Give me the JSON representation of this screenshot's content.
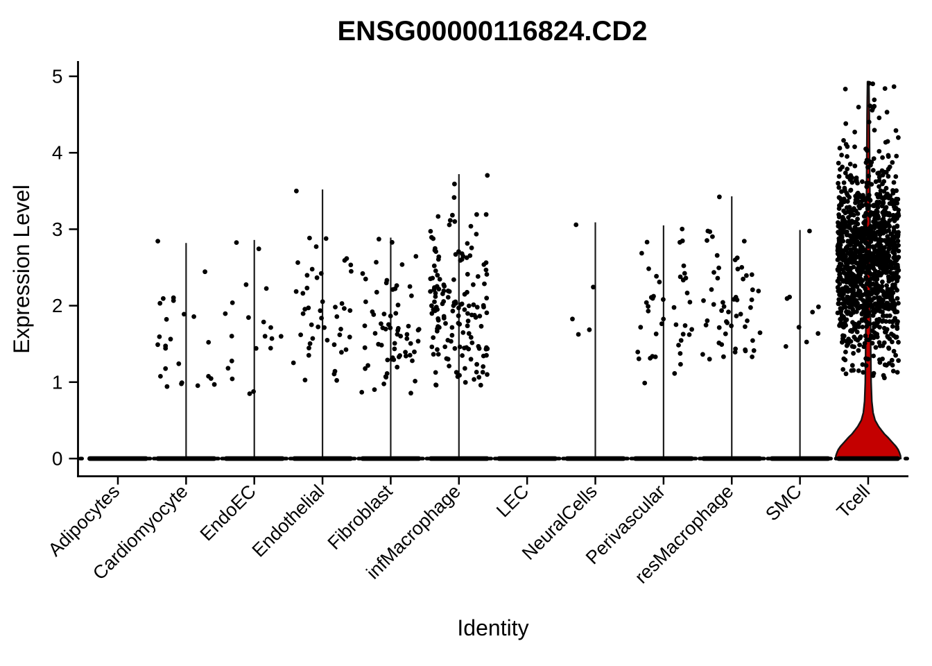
{
  "title": "ENSG00000116824.CD2",
  "y_axis": {
    "label": "Expression Level",
    "ticks": [
      0,
      1,
      2,
      3,
      4,
      5
    ],
    "range": [
      0,
      5
    ]
  },
  "x_axis": {
    "label": "Identity"
  },
  "colors": {
    "background": "#ffffff",
    "axis": "#000000",
    "point": "#000000",
    "violin_line": "#1c1c1c",
    "violin_outline": "#141414",
    "tcell_violin_fill": "#C40000"
  },
  "seed": 123457,
  "chart_data": {
    "type": "violin",
    "title": "ENSG00000116824.CD2",
    "xlabel": "Identity",
    "ylabel": "Expression Level",
    "ylim": [
      0,
      5
    ],
    "grid": false,
    "note": "Each identity has a dense strip of zero-expression cells at y=0; violin_max is the top of the thin violin spike; jitter_bands are [min_expression, max_expression, n_points] for non-zero cells.",
    "categories": [
      {
        "label": "Adipocytes",
        "violin_max": 0,
        "has_line": false,
        "jitter_bands": []
      },
      {
        "label": "Cardiomyocyte",
        "violin_max": 2.82,
        "has_line": true,
        "jitter_bands": [
          [
            0.85,
            1.15,
            8
          ],
          [
            1.15,
            1.5,
            5
          ],
          [
            1.5,
            1.9,
            6
          ],
          [
            1.9,
            2.15,
            4
          ],
          [
            2.35,
            2.45,
            1
          ],
          [
            2.78,
            2.85,
            1
          ]
        ]
      },
      {
        "label": "EndoEC",
        "violin_max": 2.86,
        "has_line": true,
        "jitter_bands": [
          [
            0.8,
            1.1,
            3
          ],
          [
            1.15,
            1.6,
            6
          ],
          [
            1.6,
            2.0,
            6
          ],
          [
            2.0,
            2.3,
            3
          ],
          [
            2.65,
            2.88,
            2
          ]
        ]
      },
      {
        "label": "Endothelial",
        "violin_max": 3.52,
        "has_line": true,
        "jitter_bands": [
          [
            0.95,
            1.3,
            5
          ],
          [
            1.3,
            1.7,
            12
          ],
          [
            1.7,
            2.2,
            16
          ],
          [
            2.2,
            2.6,
            9
          ],
          [
            2.6,
            2.95,
            4
          ],
          [
            3.5,
            3.5,
            1
          ]
        ]
      },
      {
        "label": "Fibroblast",
        "violin_max": 2.89,
        "has_line": true,
        "jitter_bands": [
          [
            0.85,
            1.2,
            10
          ],
          [
            1.2,
            1.6,
            20
          ],
          [
            1.6,
            2.1,
            22
          ],
          [
            2.1,
            2.45,
            10
          ],
          [
            2.45,
            2.65,
            3
          ],
          [
            2.8,
            2.88,
            2
          ]
        ]
      },
      {
        "label": "infMacrophage",
        "violin_max": 3.72,
        "has_line": true,
        "jitter_bands": [
          [
            0.95,
            1.3,
            18
          ],
          [
            1.3,
            1.9,
            50
          ],
          [
            1.9,
            2.5,
            52
          ],
          [
            2.5,
            2.9,
            20
          ],
          [
            2.9,
            3.2,
            10
          ],
          [
            3.38,
            3.42,
            1
          ],
          [
            3.58,
            3.62,
            1
          ],
          [
            3.7,
            3.73,
            1
          ]
        ]
      },
      {
        "label": "LEC",
        "violin_max": 0,
        "has_line": false,
        "jitter_bands": []
      },
      {
        "label": "NeuralCells",
        "violin_max": 3.09,
        "has_line": true,
        "jitter": 34,
        "jitter_bands": [
          [
            1.6,
            1.95,
            3
          ],
          [
            2.24,
            2.28,
            1
          ],
          [
            3.05,
            3.09,
            1
          ]
        ]
      },
      {
        "label": "Perivascular",
        "violin_max": 3.05,
        "has_line": true,
        "jitter_bands": [
          [
            0.95,
            1.25,
            3
          ],
          [
            1.3,
            1.7,
            12
          ],
          [
            1.7,
            2.2,
            15
          ],
          [
            2.2,
            2.55,
            8
          ],
          [
            2.55,
            2.85,
            4
          ],
          [
            2.98,
            3.02,
            1
          ]
        ]
      },
      {
        "label": "resMacrophage",
        "violin_max": 3.43,
        "has_line": true,
        "jitter_bands": [
          [
            1.25,
            1.6,
            12
          ],
          [
            1.6,
            2.0,
            16
          ],
          [
            2.0,
            2.4,
            13
          ],
          [
            2.4,
            2.8,
            8
          ],
          [
            2.8,
            3.1,
            5
          ],
          [
            3.42,
            3.45,
            1
          ]
        ]
      },
      {
        "label": "SMC",
        "violin_max": 2.99,
        "has_line": true,
        "jitter": 35,
        "jitter_bands": [
          [
            1.45,
            1.55,
            2
          ],
          [
            1.6,
            1.75,
            2
          ],
          [
            1.9,
            2.0,
            2
          ],
          [
            2.05,
            2.15,
            2
          ],
          [
            2.95,
            2.99,
            1
          ]
        ]
      },
      {
        "label": "Tcell",
        "violin_max": 4.93,
        "has_line": false,
        "jitter": 44,
        "fill": "#C40000",
        "bell_profile": [
          [
            0,
            47
          ],
          [
            0.04,
            46.5
          ],
          [
            0.08,
            45
          ],
          [
            0.12,
            43
          ],
          [
            0.16,
            40
          ],
          [
            0.2,
            36
          ],
          [
            0.24,
            32
          ],
          [
            0.28,
            28
          ],
          [
            0.32,
            23.5
          ],
          [
            0.36,
            20
          ],
          [
            0.42,
            15
          ],
          [
            0.5,
            10
          ],
          [
            0.6,
            7
          ],
          [
            0.75,
            5.2
          ],
          [
            1.0,
            4.2
          ],
          [
            1.5,
            3.6
          ],
          [
            2.0,
            3.2
          ],
          [
            2.5,
            3.0
          ],
          [
            3.0,
            2.7
          ],
          [
            3.5,
            2.4
          ],
          [
            4.0,
            2.0
          ],
          [
            4.5,
            1.6
          ],
          [
            4.93,
            1.0
          ]
        ],
        "jitter_bands": [
          [
            1.05,
            1.5,
            45
          ],
          [
            1.5,
            1.9,
            115
          ],
          [
            1.9,
            2.3,
            255
          ],
          [
            2.3,
            2.7,
            300
          ],
          [
            2.7,
            3.1,
            270
          ],
          [
            3.1,
            3.5,
            150
          ],
          [
            3.5,
            3.9,
            60
          ],
          [
            3.9,
            4.2,
            20
          ],
          [
            4.2,
            4.6,
            10
          ],
          [
            4.6,
            4.93,
            8
          ]
        ]
      }
    ]
  }
}
